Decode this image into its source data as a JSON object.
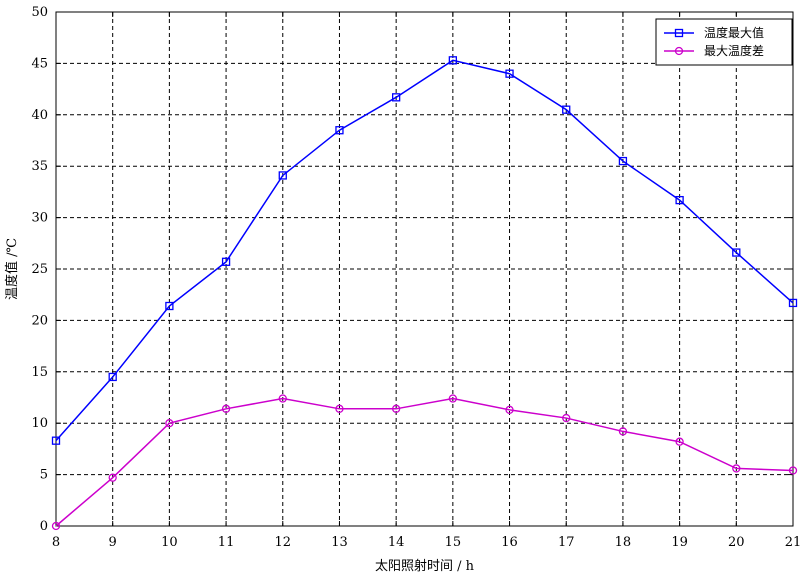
{
  "chart_data": {
    "type": "line",
    "xlabel": "太阳照射时间 / h",
    "ylabel": "温度值 /℃",
    "xlim": [
      8,
      21
    ],
    "ylim": [
      0,
      50
    ],
    "xticks": [
      8,
      9,
      10,
      11,
      12,
      13,
      14,
      15,
      16,
      17,
      18,
      19,
      20,
      21
    ],
    "yticks": [
      0,
      5,
      10,
      15,
      20,
      25,
      30,
      35,
      40,
      45,
      50
    ],
    "grid": true,
    "legend_position": "top-right",
    "x": [
      8,
      9,
      10,
      11,
      12,
      13,
      14,
      15,
      16,
      17,
      18,
      19,
      20,
      21
    ],
    "series": [
      {
        "name": "温度最大值",
        "color": "#0000ff",
        "marker": "square",
        "values": [
          8.3,
          14.5,
          21.4,
          25.7,
          34.1,
          38.5,
          41.7,
          45.3,
          44.0,
          40.5,
          35.5,
          31.7,
          26.6,
          21.7
        ]
      },
      {
        "name": "最大温度差",
        "color": "#cc00cc",
        "marker": "circle",
        "values": [
          0.0,
          4.7,
          10.0,
          11.4,
          12.4,
          11.4,
          11.4,
          12.4,
          11.3,
          10.5,
          9.2,
          8.2,
          5.6,
          5.4
        ]
      }
    ]
  }
}
